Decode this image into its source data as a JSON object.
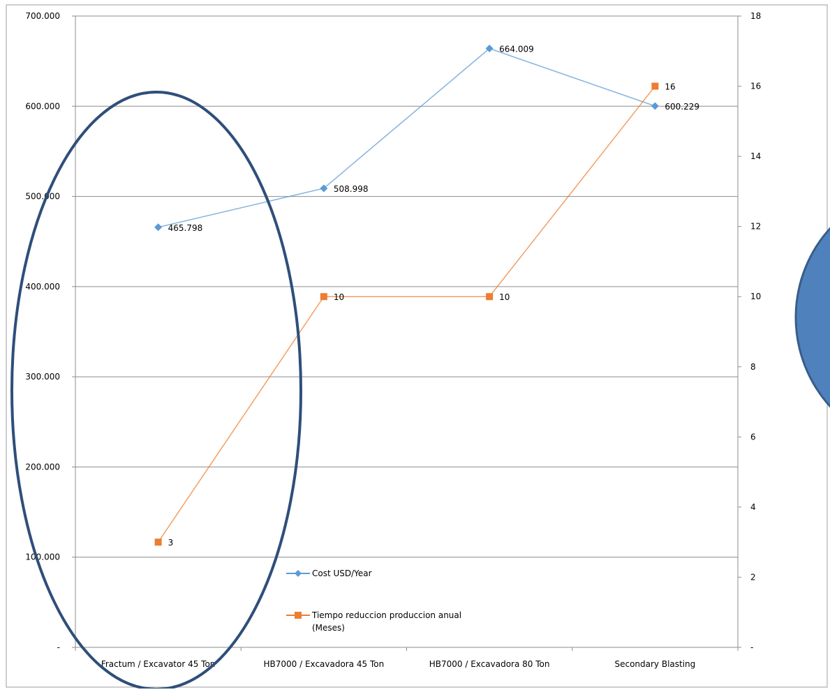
{
  "chart_data": {
    "type": "line",
    "categories": [
      "Fractum / Excavator 45 Ton",
      "HB7000 / Excavadora 45 Ton",
      "HB7000 / Excavadora 80 Ton",
      "Secondary Blasting"
    ],
    "series": [
      {
        "name": "Cost USD/Year",
        "axis": "left",
        "color": "#5b9bd5",
        "marker": "diamond",
        "values": [
          465798,
          508998,
          664009,
          600229
        ],
        "labels": [
          "465.798",
          "508.998",
          "664.009",
          "600.229"
        ]
      },
      {
        "name": "Tiempo reduccion produccion anual (Meses)",
        "legend_lines": [
          "Tiempo reduccion produccion anual",
          "(Meses)"
        ],
        "axis": "right",
        "color": "#ed7d31",
        "marker": "square",
        "values": [
          3,
          10,
          10,
          16
        ],
        "labels": [
          "3",
          "10",
          "10",
          "16"
        ]
      }
    ],
    "y_left": {
      "ylim": [
        0,
        700000
      ],
      "ticks": [
        0,
        100000,
        200000,
        300000,
        400000,
        500000,
        600000,
        700000
      ],
      "tick_labels": [
        "-",
        "100.000",
        "200.000",
        "300.000",
        "400.000",
        "500.000",
        "600.000",
        "700.000"
      ]
    },
    "y_right": {
      "ylim": [
        0,
        18
      ],
      "ticks": [
        0,
        2,
        4,
        6,
        8,
        10,
        12,
        14,
        16,
        18
      ],
      "tick_labels": [
        "-",
        "2",
        "4",
        "6",
        "8",
        "10",
        "12",
        "14",
        "16",
        "18"
      ]
    },
    "grid": true,
    "legend_placement": "bottom-center"
  },
  "annotations": {
    "ellipse_color": "#2f4e7a",
    "circle_fill": "#4f81bd",
    "circle_stroke": "#385d8a"
  }
}
